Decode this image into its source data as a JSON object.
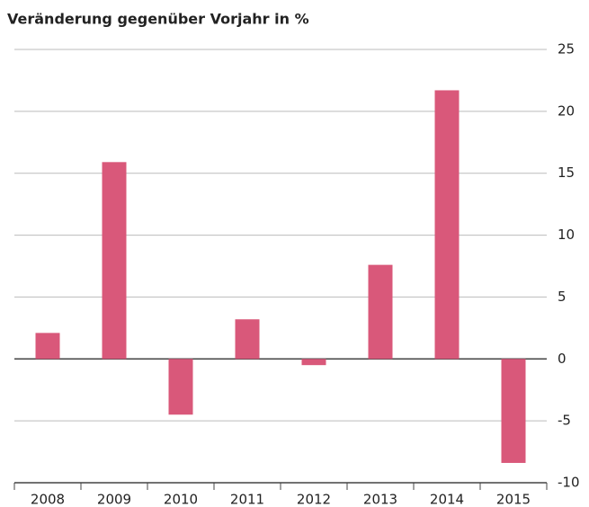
{
  "chart_data": {
    "type": "bar",
    "title": "Veränderung gegenüber Vorjahr in %",
    "categories": [
      "2008",
      "2009",
      "2010",
      "2011",
      "2012",
      "2013",
      "2014",
      "2015"
    ],
    "values": [
      2.1,
      15.9,
      -4.5,
      3.2,
      -0.5,
      7.6,
      21.7,
      -8.4
    ],
    "color": "#d9587a",
    "ylim": [
      -10,
      25
    ],
    "yticks": [
      -10,
      -5,
      0,
      5,
      10,
      15,
      20,
      25
    ],
    "grid": true
  }
}
